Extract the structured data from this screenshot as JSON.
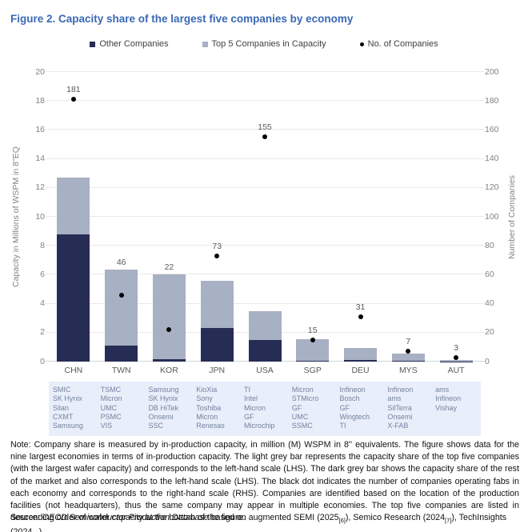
{
  "title": "Figure 2. Capacity share of the largest five companies by economy",
  "legend": {
    "items": [
      {
        "label": "Other Companies",
        "marker": "square",
        "color": "#272c55"
      },
      {
        "label": "Top 5 Companies in Capacity",
        "marker": "square",
        "color": "#a8b0c3"
      },
      {
        "label": "No. of Companies",
        "marker": "dot",
        "color": "#000000"
      }
    ]
  },
  "chart_data": {
    "type": "bar",
    "stacked": true,
    "categories": [
      "CHN",
      "TWN",
      "KOR",
      "JPN",
      "USA",
      "SGP",
      "DEU",
      "MYS",
      "AUT"
    ],
    "series": [
      {
        "name": "Other Companies",
        "axis": "left",
        "color": "#272c55",
        "values": [
          8.8,
          1.1,
          0.15,
          2.3,
          1.5,
          0.05,
          0.1,
          0.03,
          0.02
        ]
      },
      {
        "name": "Top 5 Companies in Capacity",
        "axis": "left",
        "color": "#a8b0c3",
        "values": [
          3.9,
          5.25,
          5.85,
          3.3,
          2.0,
          1.5,
          0.85,
          0.5,
          0.1
        ]
      }
    ],
    "totals_left_scale": [
      12.7,
      6.35,
      6.0,
      5.6,
      3.5,
      1.55,
      0.95,
      0.53,
      0.12
    ],
    "dot_series": {
      "name": "No. of Companies",
      "axis": "right",
      "color": "#000000",
      "values": [
        181,
        46,
        22,
        73,
        155,
        15,
        31,
        7,
        3
      ]
    },
    "ylabel_left": "Capacity in Millions of WSPM in 8\"EQ",
    "ylabel_right": "Number of Companies",
    "ylim_left": [
      0,
      20
    ],
    "ylim_right": [
      0,
      200
    ],
    "yticks_left": [
      0,
      2,
      4,
      6,
      8,
      10,
      12,
      14,
      16,
      18,
      20
    ],
    "yticks_right": [
      0,
      20,
      40,
      60,
      80,
      100,
      120,
      140,
      160,
      180,
      200
    ],
    "grid": true,
    "legend_position": "top"
  },
  "company_lists": [
    {
      "economy": "CHN",
      "companies": [
        "SMIC",
        "SK Hynix",
        "Silan",
        "CXMT",
        "Samsung"
      ]
    },
    {
      "economy": "TWN",
      "companies": [
        "TSMC",
        "Micron",
        "UMC",
        "PSMC",
        "VIS"
      ]
    },
    {
      "economy": "KOR",
      "companies": [
        "Samsung",
        "SK Hynix",
        "DB HiTek",
        "Onsemi",
        "SSC"
      ]
    },
    {
      "economy": "JPN",
      "companies": [
        "KioXia",
        "Sony",
        "Toshiba",
        "Micron",
        "Renesas"
      ]
    },
    {
      "economy": "USA",
      "companies": [
        "TI",
        "Intel",
        "Micron",
        "GF",
        "Microchip"
      ]
    },
    {
      "economy": "SGP",
      "companies": [
        "Micron",
        "STMicro",
        "GF",
        "UMC",
        "SSMC"
      ]
    },
    {
      "economy": "DEU",
      "companies": [
        "Infineon",
        "Bosch",
        "GF",
        "Wingtech",
        "TI"
      ]
    },
    {
      "economy": "MYS",
      "companies": [
        "Infineon",
        "ams",
        "SilTerra",
        "Onsemi",
        "X-FAB"
      ]
    },
    {
      "economy": "AUT",
      "companies": [
        "ams",
        "Infineon",
        "Vishay"
      ]
    }
  ],
  "note": "Note: Company share is measured by in-production capacity, in million (M) WSPM in 8'' equivalents. The figure shows data for the nine largest economies in terms of in-production capacity. The light grey bar represents the capacity share of the top five companies (with the largest wafer capacity) and corresponds to the left-hand scale (LHS). The dark grey bar shows the capacity share of the rest of the market and also corresponds to the left-hand scale (LHS). The black dot indicates the number of companies operating fabs in each economy and corresponds to the right-hand scale (RHS). Companies are identified based on the location of the production facilities (not headquarters), thus the same company may appear in multiple economies. The top five companies are listed in descending order of wafer capacity at the bottom of the figure.",
  "source_segments": [
    {
      "text": "Source: "
    },
    {
      "text": "OECD Semiconductor Production Database",
      "italic": true
    },
    {
      "text": " based on augmented SEMI (2025"
    },
    {
      "text": "[6]",
      "sub": true
    },
    {
      "text": "), Semico Research (2024"
    },
    {
      "text": "[7]",
      "sub": true
    },
    {
      "text": "), TechInsights (2024"
    },
    {
      "text": "[8]",
      "sub": true
    },
    {
      "text": ")."
    }
  ]
}
